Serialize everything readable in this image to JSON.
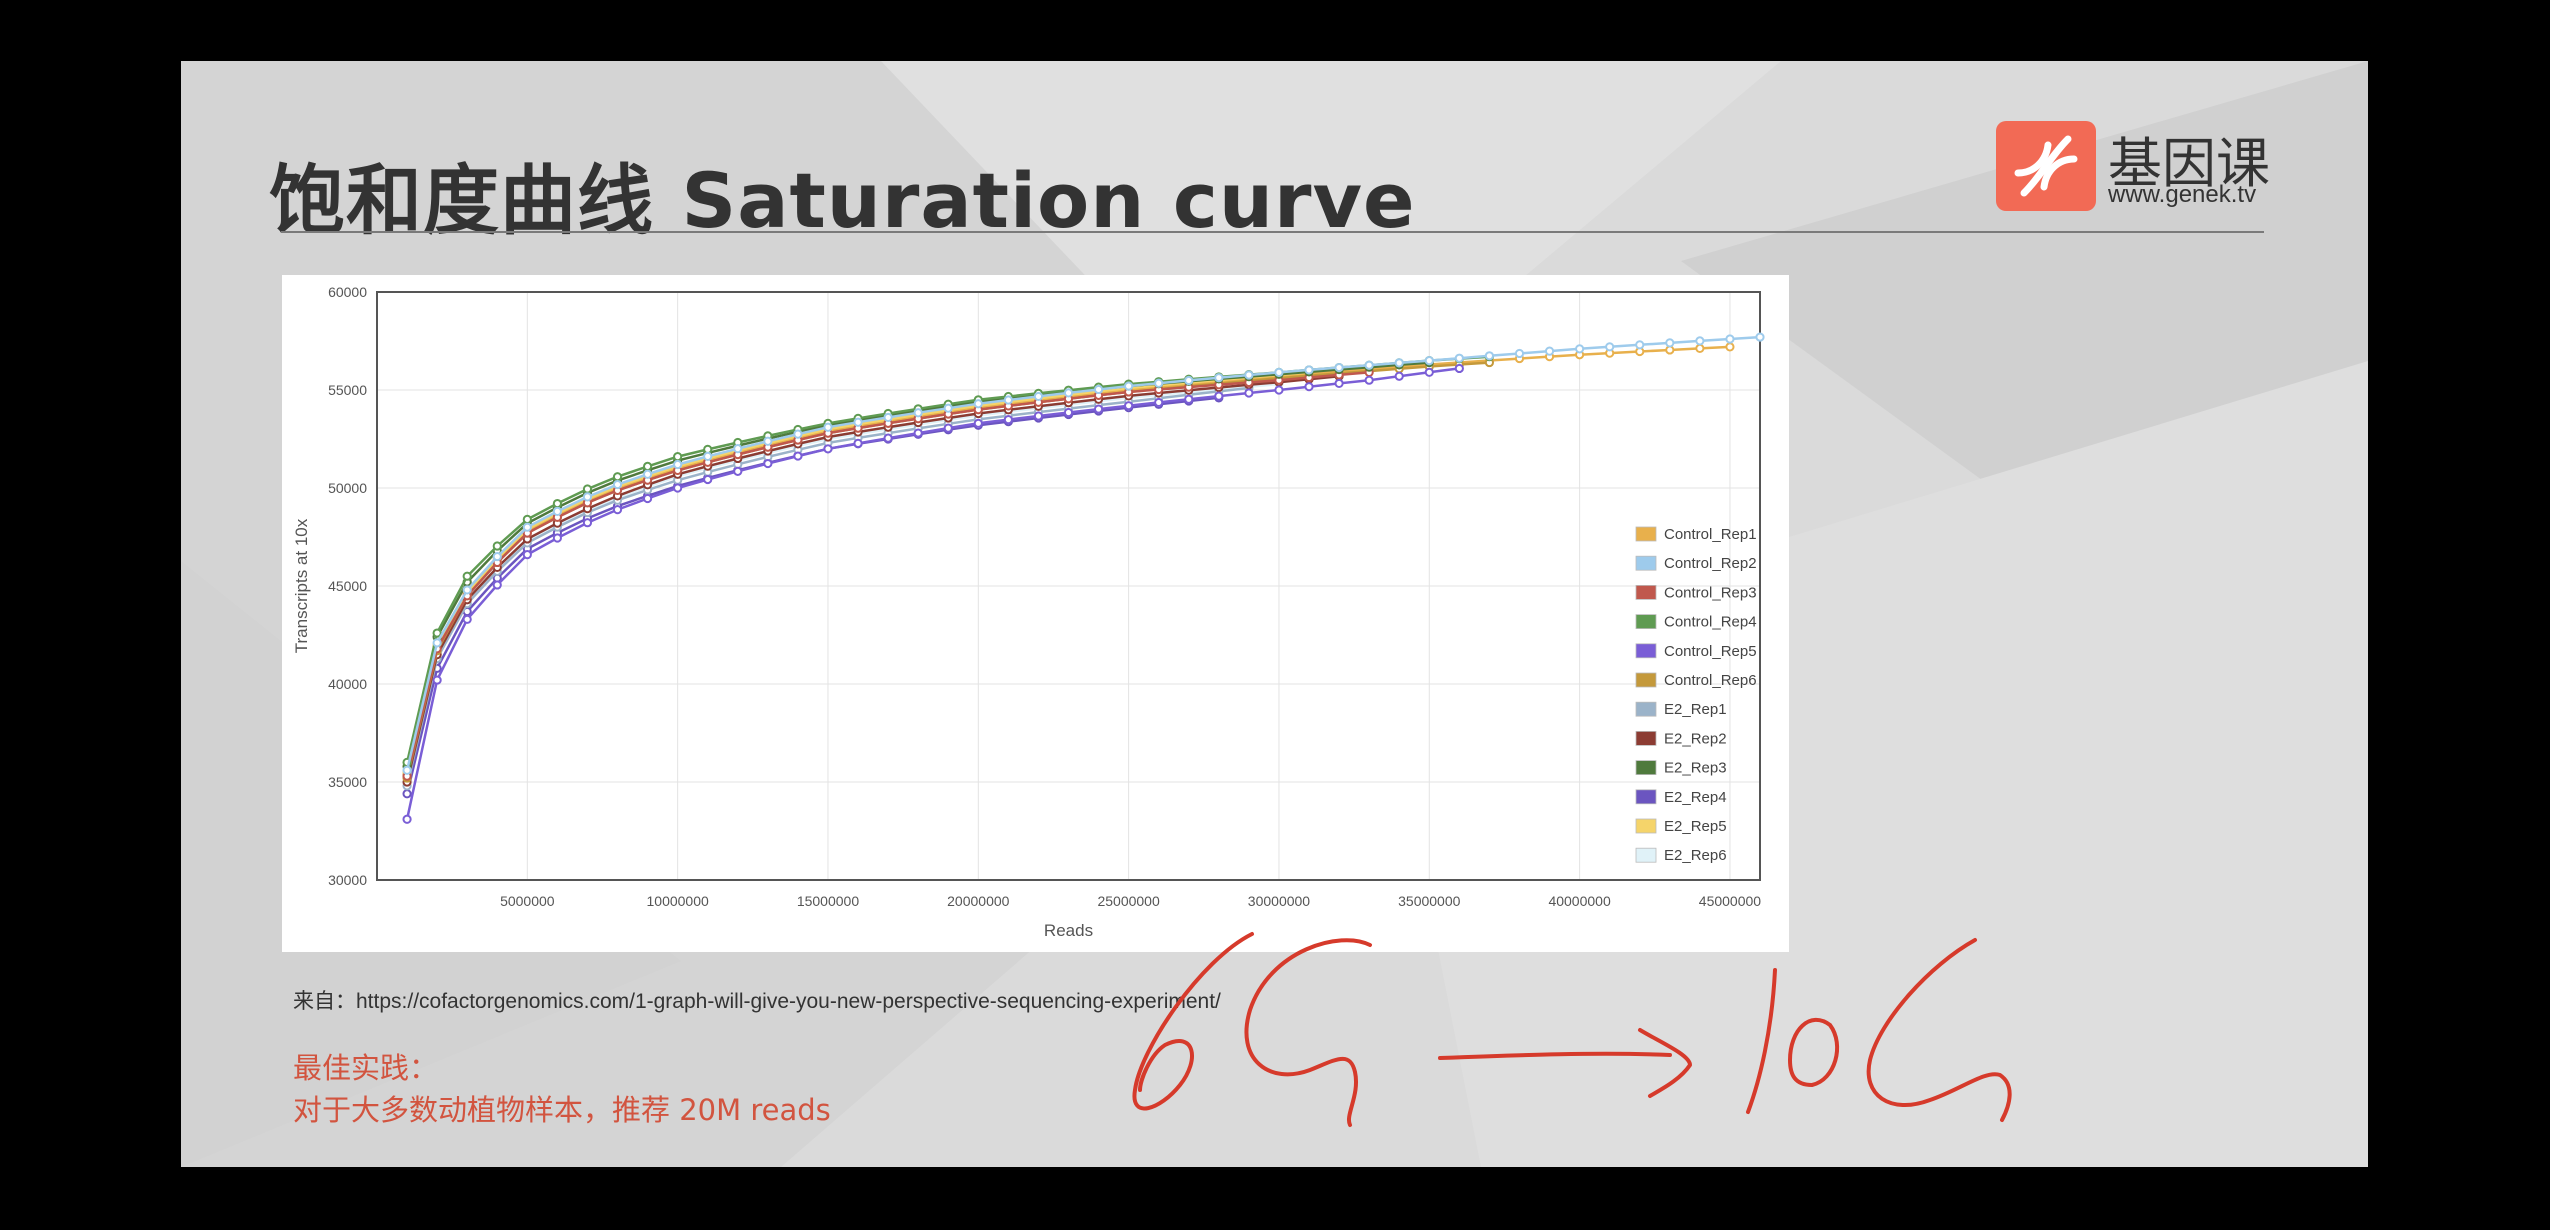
{
  "slide": {
    "title": "饱和度曲线 Saturation curve",
    "logo": {
      "name": "基因课",
      "url": "www.genek.tv"
    },
    "source": "来自：https://cofactorgenomics.com/1-graph-will-give-you-new-perspective-sequencing-experiment/",
    "best_practice_title": "最佳实践：",
    "best_practice_text": "对于大多数动植物样本，推荐 20M reads",
    "annotation": "6G → 10G"
  },
  "chart_data": {
    "type": "line",
    "title": "",
    "xlabel": "Reads",
    "ylabel": "Transcripts at 10x",
    "xlim": [
      0,
      46000000
    ],
    "ylim": [
      30000,
      60000
    ],
    "xticks": [
      5000000,
      10000000,
      15000000,
      20000000,
      25000000,
      30000000,
      35000000,
      40000000,
      45000000
    ],
    "xtick_labels": [
      "5000000",
      "10000000",
      "15000000",
      "20000000",
      "25000000",
      "30000000",
      "35000000",
      "40000000",
      "45000000"
    ],
    "yticks": [
      30000,
      35000,
      40000,
      45000,
      50000,
      55000,
      60000
    ],
    "ytick_labels": [
      "30000",
      "35000",
      "40000",
      "45000",
      "50000",
      "55000",
      "60000"
    ],
    "grid": true,
    "legend_position": "right",
    "series": [
      {
        "name": "Control_Rep1",
        "color": "#e8b04c",
        "max_reads": 45000000,
        "points": [
          [
            1000000,
            35400
          ],
          [
            2000000,
            41900
          ],
          [
            3000000,
            44600
          ],
          [
            5000000,
            47800
          ],
          [
            7500000,
            49700
          ],
          [
            10000000,
            51000
          ],
          [
            15000000,
            52900
          ],
          [
            20000000,
            54100
          ],
          [
            25000000,
            55000
          ],
          [
            30000000,
            55700
          ],
          [
            35000000,
            56300
          ],
          [
            40000000,
            56800
          ],
          [
            45000000,
            57200
          ]
        ]
      },
      {
        "name": "Control_Rep2",
        "color": "#9ecbec",
        "max_reads": 46000000,
        "points": [
          [
            1000000,
            35600
          ],
          [
            2000000,
            42100
          ],
          [
            3000000,
            44800
          ],
          [
            5000000,
            48000
          ],
          [
            7500000,
            49900
          ],
          [
            10000000,
            51200
          ],
          [
            15000000,
            53100
          ],
          [
            20000000,
            54300
          ],
          [
            25000000,
            55200
          ],
          [
            30000000,
            55900
          ],
          [
            35000000,
            56500
          ],
          [
            40000000,
            57100
          ],
          [
            46000000,
            57700
          ]
        ]
      },
      {
        "name": "Control_Rep3",
        "color": "#c0584d",
        "max_reads": 33000000,
        "points": [
          [
            1000000,
            35300
          ],
          [
            2000000,
            41800
          ],
          [
            3000000,
            44500
          ],
          [
            5000000,
            47700
          ],
          [
            7500000,
            49600
          ],
          [
            10000000,
            50900
          ],
          [
            15000000,
            52800
          ],
          [
            20000000,
            54000
          ],
          [
            25000000,
            54900
          ],
          [
            30000000,
            55500
          ],
          [
            33000000,
            55900
          ]
        ]
      },
      {
        "name": "Control_Rep4",
        "color": "#5f9b52",
        "max_reads": 37000000,
        "points": [
          [
            1000000,
            36000
          ],
          [
            2000000,
            42600
          ],
          [
            3000000,
            45500
          ],
          [
            5000000,
            48400
          ],
          [
            7500000,
            50300
          ],
          [
            10000000,
            51600
          ],
          [
            15000000,
            53300
          ],
          [
            20000000,
            54500
          ],
          [
            25000000,
            55300
          ],
          [
            30000000,
            55900
          ],
          [
            35000000,
            56500
          ],
          [
            37000000,
            56700
          ]
        ]
      },
      {
        "name": "Control_Rep5",
        "color": "#7a5ed6",
        "max_reads": 36000000,
        "points": [
          [
            1000000,
            33100
          ],
          [
            2000000,
            40200
          ],
          [
            3000000,
            43300
          ],
          [
            5000000,
            46600
          ],
          [
            7500000,
            48600
          ],
          [
            10000000,
            50000
          ],
          [
            15000000,
            52000
          ],
          [
            20000000,
            53300
          ],
          [
            25000000,
            54200
          ],
          [
            30000000,
            55000
          ],
          [
            33000000,
            55500
          ],
          [
            36000000,
            56100
          ]
        ]
      },
      {
        "name": "Control_Rep6",
        "color": "#c4993b",
        "max_reads": 37000000,
        "points": [
          [
            1000000,
            35200
          ],
          [
            2000000,
            41700
          ],
          [
            3000000,
            44500
          ],
          [
            5000000,
            47700
          ],
          [
            7500000,
            49600
          ],
          [
            10000000,
            50900
          ],
          [
            15000000,
            52800
          ],
          [
            20000000,
            54000
          ],
          [
            25000000,
            54900
          ],
          [
            30000000,
            55600
          ],
          [
            35000000,
            56200
          ],
          [
            37000000,
            56400
          ]
        ]
      },
      {
        "name": "E2_Rep1",
        "color": "#9bb3c9",
        "max_reads": 29000000,
        "points": [
          [
            1000000,
            34800
          ],
          [
            2000000,
            41300
          ],
          [
            3000000,
            44100
          ],
          [
            5000000,
            47200
          ],
          [
            7500000,
            49100
          ],
          [
            10000000,
            50400
          ],
          [
            15000000,
            52300
          ],
          [
            20000000,
            53500
          ],
          [
            25000000,
            54400
          ],
          [
            29000000,
            55100
          ]
        ]
      },
      {
        "name": "E2_Rep2",
        "color": "#8c3c33",
        "max_reads": 32000000,
        "points": [
          [
            1000000,
            35000
          ],
          [
            2000000,
            41500
          ],
          [
            3000000,
            44300
          ],
          [
            5000000,
            47400
          ],
          [
            7500000,
            49300
          ],
          [
            10000000,
            50700
          ],
          [
            15000000,
            52600
          ],
          [
            20000000,
            53800
          ],
          [
            25000000,
            54700
          ],
          [
            30000000,
            55400
          ],
          [
            32000000,
            55700
          ]
        ]
      },
      {
        "name": "E2_Rep3",
        "color": "#4f7a3d",
        "max_reads": 35000000,
        "points": [
          [
            1000000,
            35800
          ],
          [
            2000000,
            42400
          ],
          [
            3000000,
            45200
          ],
          [
            5000000,
            48200
          ],
          [
            7500000,
            50100
          ],
          [
            10000000,
            51400
          ],
          [
            15000000,
            53200
          ],
          [
            20000000,
            54400
          ],
          [
            25000000,
            55200
          ],
          [
            30000000,
            55800
          ],
          [
            35000000,
            56400
          ]
        ]
      },
      {
        "name": "E2_Rep4",
        "color": "#6b55c0",
        "max_reads": 28000000,
        "points": [
          [
            1000000,
            34400
          ],
          [
            2000000,
            40800
          ],
          [
            3000000,
            43700
          ],
          [
            5000000,
            46900
          ],
          [
            7500000,
            48800
          ],
          [
            10000000,
            50100
          ],
          [
            15000000,
            52000
          ],
          [
            20000000,
            53200
          ],
          [
            25000000,
            54100
          ],
          [
            28000000,
            54600
          ]
        ]
      },
      {
        "name": "E2_Rep5",
        "color": "#f5d46a",
        "max_reads": 31000000,
        "points": [
          [
            1000000,
            35500
          ],
          [
            2000000,
            42000
          ],
          [
            3000000,
            44700
          ],
          [
            5000000,
            47900
          ],
          [
            7500000,
            49800
          ],
          [
            10000000,
            51100
          ],
          [
            15000000,
            53000
          ],
          [
            20000000,
            54200
          ],
          [
            25000000,
            55100
          ],
          [
            31000000,
            55900
          ]
        ]
      },
      {
        "name": "E2_Rep6",
        "color": "#e0f2f8",
        "max_reads": 30000000,
        "points": [
          [
            1000000,
            35000
          ],
          [
            2000000,
            41400
          ],
          [
            3000000,
            44200
          ],
          [
            5000000,
            47300
          ],
          [
            7500000,
            49200
          ],
          [
            10000000,
            50600
          ],
          [
            15000000,
            52500
          ],
          [
            20000000,
            53700
          ],
          [
            25000000,
            54600
          ],
          [
            30000000,
            55300
          ]
        ]
      }
    ]
  }
}
